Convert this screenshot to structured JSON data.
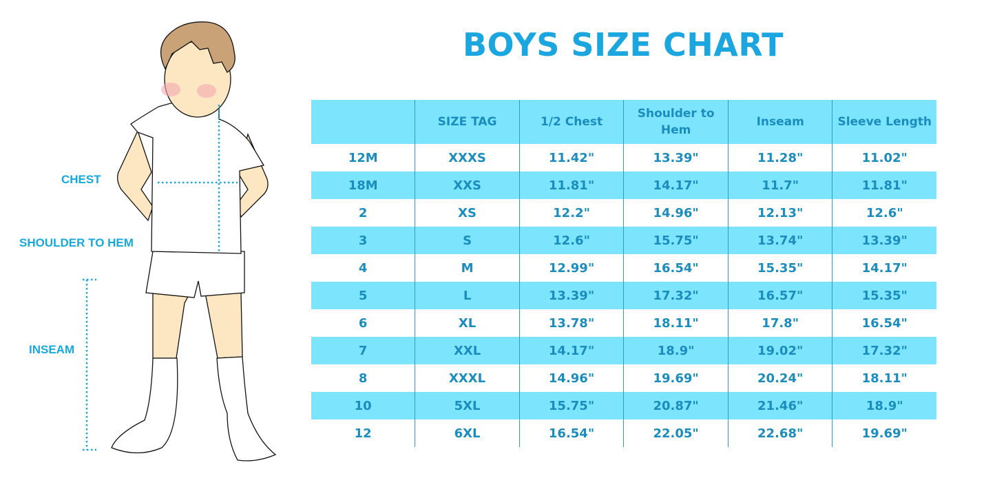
{
  "title": "BOYS SIZE CHART",
  "colors": {
    "accent": "#1ba6e0",
    "row_fill": "#7ce5fd",
    "text": "#1a8cbd"
  },
  "figure_labels": {
    "chest": "CHEST",
    "shoulder_to_hem": "SHOULDER TO HEM",
    "inseam": "INSEAM"
  },
  "table": {
    "headers": [
      "",
      "SIZE TAG",
      "1/2 Chest",
      "Shoulder to Hem",
      "Inseam",
      "Sleeve Length"
    ],
    "rows": [
      [
        "12M",
        "XXXS",
        "11.42\"",
        "13.39\"",
        "11.28\"",
        "11.02\""
      ],
      [
        "18M",
        "XXS",
        "11.81\"",
        "14.17\"",
        "11.7\"",
        "11.81\""
      ],
      [
        "2",
        "XS",
        "12.2\"",
        "14.96\"",
        "12.13\"",
        "12.6\""
      ],
      [
        "3",
        "S",
        "12.6\"",
        "15.75\"",
        "13.74\"",
        "13.39\""
      ],
      [
        "4",
        "M",
        "12.99\"",
        "16.54\"",
        "15.35\"",
        "14.17\""
      ],
      [
        "5",
        "L",
        "13.39\"",
        "17.32\"",
        "16.57\"",
        "15.35\""
      ],
      [
        "6",
        "XL",
        "13.78\"",
        "18.11\"",
        "17.8\"",
        "16.54\""
      ],
      [
        "7",
        "XXL",
        "14.17\"",
        "18.9\"",
        "19.02\"",
        "17.32\""
      ],
      [
        "8",
        "XXXL",
        "14.96\"",
        "19.69\"",
        "20.24\"",
        "18.11\""
      ],
      [
        "10",
        "5XL",
        "15.75\"",
        "20.87\"",
        "21.46\"",
        "18.9\""
      ],
      [
        "12",
        "6XL",
        "16.54\"",
        "22.05\"",
        "22.68\"",
        "19.69\""
      ]
    ]
  }
}
